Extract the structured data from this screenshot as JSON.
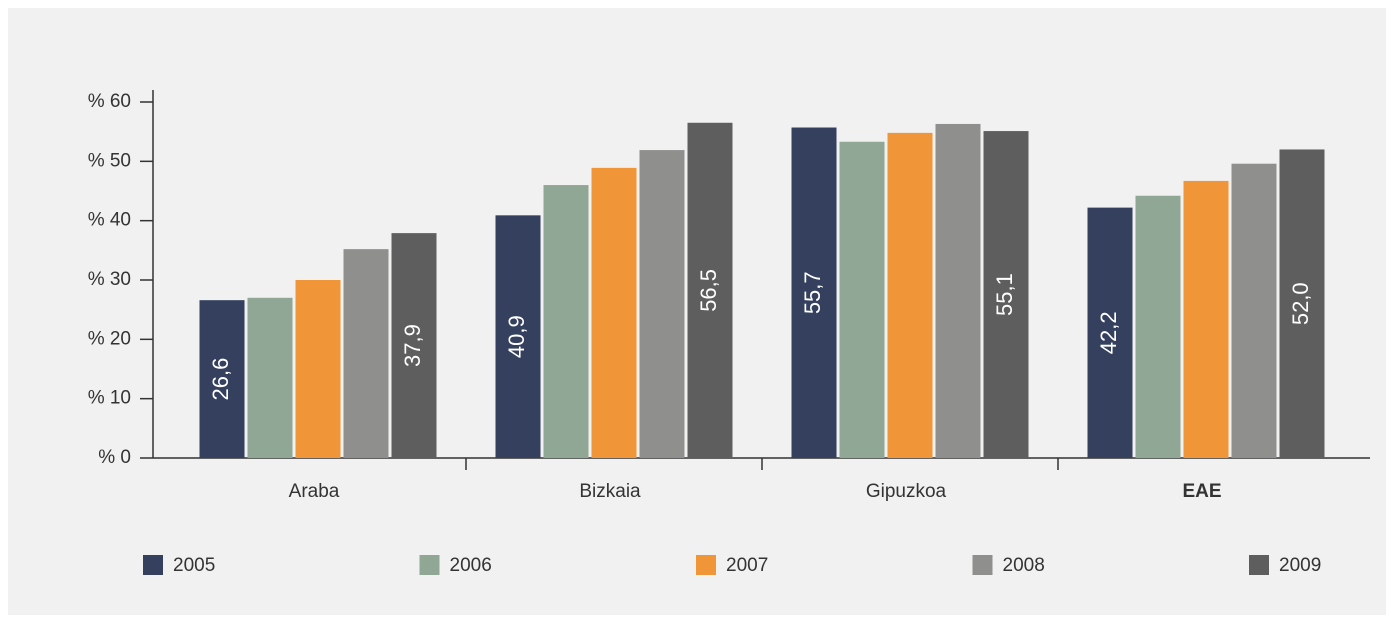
{
  "chart_data": {
    "type": "bar",
    "categories": [
      "Araba",
      "Bizkaia",
      "Gipuzkoa",
      "EAE"
    ],
    "series": [
      {
        "name": "2005",
        "color": "#34405e",
        "values": [
          26.6,
          40.9,
          55.7,
          42.2
        ],
        "value_labels": [
          "26,6",
          "40,9",
          "55,7",
          "42,2"
        ]
      },
      {
        "name": "2006",
        "color": "#8fa794",
        "values": [
          27.0,
          46.0,
          53.3,
          44.2
        ]
      },
      {
        "name": "2007",
        "color": "#f19638",
        "values": [
          30.0,
          48.9,
          54.8,
          46.7
        ]
      },
      {
        "name": "2008",
        "color": "#8f8f8d",
        "values": [
          35.2,
          51.9,
          56.3,
          49.6
        ]
      },
      {
        "name": "2009",
        "color": "#5e5e5e",
        "values": [
          37.9,
          56.5,
          55.1,
          52.0
        ],
        "value_labels": [
          "37,9",
          "56,5",
          "55,1",
          "52,0"
        ]
      }
    ],
    "ylim": [
      0,
      60
    ],
    "yticks": [
      {
        "value": 0,
        "label": "% 0"
      },
      {
        "value": 10,
        "label": "% 10"
      },
      {
        "value": 20,
        "label": "% 20"
      },
      {
        "value": 30,
        "label": "% 30"
      },
      {
        "value": 40,
        "label": "% 40"
      },
      {
        "value": 50,
        "label": "% 50"
      },
      {
        "value": 60,
        "label": "% 60"
      }
    ],
    "legend": "bottom"
  }
}
